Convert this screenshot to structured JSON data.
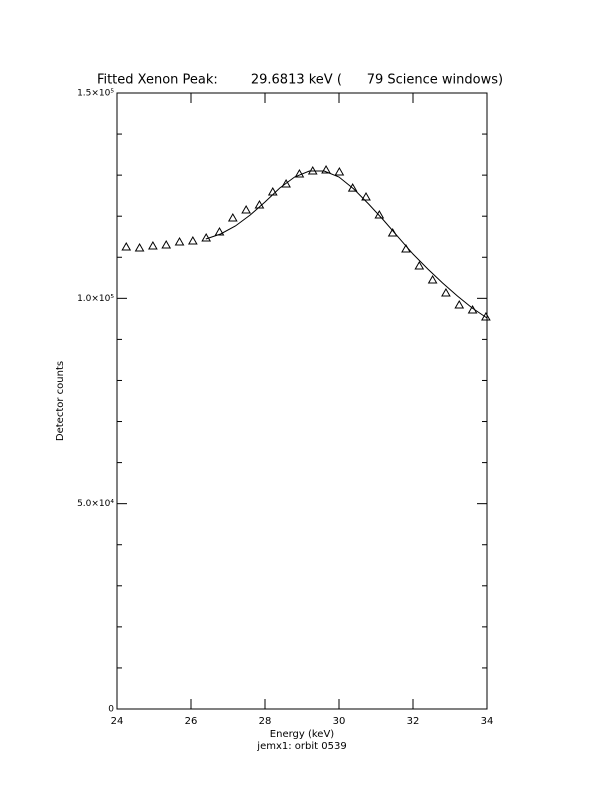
{
  "chart_data": {
    "type": "scatter",
    "title": "Fitted Xenon Peak:        29.6813 keV (      79 Science windows)",
    "xlabel": "Energy (keV)",
    "ylabel": "Detector counts",
    "subtitle": "jemx1: orbit 0539",
    "xlim": [
      24,
      34
    ],
    "xticks": [
      24,
      26,
      28,
      30,
      32,
      34
    ],
    "ylim": [
      0,
      150000
    ],
    "yticks": [
      {
        "value": 0,
        "label": "0"
      },
      {
        "value": 50000,
        "label": "5.0×10⁴"
      },
      {
        "value": 100000,
        "label": "1.0×10⁵"
      },
      {
        "value": 150000,
        "label": "1.5×10⁵"
      }
    ],
    "yminorticks": [
      10000,
      20000,
      30000,
      40000,
      60000,
      70000,
      80000,
      90000,
      110000,
      120000,
      130000,
      140000
    ],
    "series": [
      {
        "mode": "markers",
        "marker": "triangle",
        "color": "#000000",
        "x": [
          24.25,
          24.61,
          24.97,
          25.33,
          25.69,
          26.05,
          26.41,
          26.77,
          27.13,
          27.49,
          27.85,
          28.21,
          28.57,
          28.93,
          29.29,
          29.65,
          30.01,
          30.37,
          30.73,
          31.09,
          31.45,
          31.81,
          32.17,
          32.53,
          32.89,
          33.25,
          33.61,
          33.97
        ],
        "values": [
          112500,
          112250,
          112740,
          112990,
          113720,
          113960,
          114690,
          116150,
          119560,
          121510,
          122730,
          125890,
          127840,
          130270,
          131000,
          131240,
          130750,
          126850,
          124670,
          120290,
          115900,
          112010,
          107870,
          104460,
          101300,
          98370,
          97160,
          95450
        ]
      },
      {
        "mode": "line",
        "color": "#000000",
        "x": [
          26.4,
          26.8,
          27.2,
          27.6,
          28.0,
          28.4,
          28.8,
          29.2,
          29.6,
          30.0,
          30.4,
          30.8,
          31.2,
          31.6,
          32.0,
          32.4,
          32.8,
          33.2,
          33.6,
          34.0
        ],
        "values": [
          114450,
          115670,
          117620,
          120290,
          123450,
          126870,
          129540,
          131000,
          131000,
          129540,
          126620,
          122970,
          119070,
          114930,
          110790,
          107140,
          103730,
          100570,
          97650,
          95210
        ]
      }
    ]
  }
}
